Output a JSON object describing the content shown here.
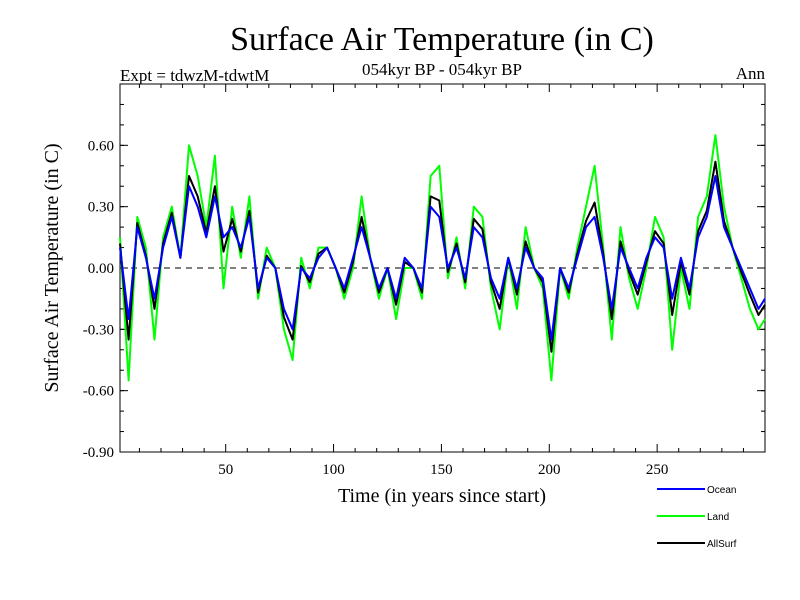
{
  "chart_data": {
    "type": "line",
    "title": "Surface Air Temperature (in C)",
    "experiment_label": "Expt = tdwzM-tdwtM",
    "subtitle": "054kyr BP - 054kyr BP",
    "period_label": "Ann",
    "xlabel": "Time (in years since start)",
    "ylabel": "Surface Air Temperature (in C)",
    "xlim": [
      1,
      300
    ],
    "ylim": [
      -0.9,
      0.9
    ],
    "x_ticks": [
      50,
      100,
      150,
      200,
      250
    ],
    "x_tick_labels": [
      "50",
      "100",
      "150",
      "200",
      "250"
    ],
    "y_ticks": [
      -0.9,
      -0.6,
      -0.3,
      0.0,
      0.3,
      0.6
    ],
    "y_tick_labels": [
      "-0.90",
      "-0.60",
      "-0.30",
      "0.00",
      "0.30",
      "0.60"
    ],
    "zero_line": true,
    "legend_position": "bottom-right",
    "x": [
      1,
      5,
      9,
      13,
      17,
      21,
      25,
      29,
      33,
      37,
      41,
      45,
      49,
      53,
      57,
      61,
      65,
      69,
      73,
      77,
      81,
      85,
      89,
      93,
      97,
      101,
      105,
      109,
      113,
      117,
      121,
      125,
      129,
      133,
      137,
      141,
      145,
      149,
      153,
      157,
      161,
      165,
      169,
      173,
      177,
      181,
      185,
      189,
      193,
      197,
      201,
      205,
      209,
      213,
      217,
      221,
      225,
      229,
      233,
      237,
      241,
      245,
      249,
      253,
      257,
      261,
      265,
      269,
      273,
      277,
      281,
      285,
      289,
      293,
      297,
      300
    ],
    "series": [
      {
        "name": "Ocean",
        "color": "#0000ff",
        "values": [
          0.1,
          -0.25,
          0.2,
          0.05,
          -0.15,
          0.1,
          0.25,
          0.05,
          0.4,
          0.3,
          0.15,
          0.35,
          0.15,
          0.2,
          0.1,
          0.25,
          -0.1,
          0.05,
          0.0,
          -0.2,
          -0.3,
          0.0,
          -0.05,
          0.05,
          0.1,
          0.0,
          -0.1,
          0.05,
          0.2,
          0.05,
          -0.1,
          0.0,
          -0.15,
          0.05,
          0.0,
          -0.1,
          0.3,
          0.25,
          0.0,
          0.1,
          -0.05,
          0.2,
          0.15,
          -0.05,
          -0.15,
          0.05,
          -0.1,
          0.1,
          0.0,
          -0.05,
          -0.35,
          0.0,
          -0.1,
          0.05,
          0.2,
          0.25,
          0.05,
          -0.2,
          0.1,
          0.0,
          -0.1,
          0.05,
          0.15,
          0.1,
          -0.15,
          0.05,
          -0.1,
          0.15,
          0.25,
          0.45,
          0.2,
          0.1,
          0.0,
          -0.1,
          -0.2,
          -0.15
        ]
      },
      {
        "name": "Land",
        "color": "#00ff00",
        "values": [
          0.15,
          -0.55,
          0.25,
          0.1,
          -0.35,
          0.15,
          0.3,
          0.05,
          0.6,
          0.45,
          0.2,
          0.55,
          -0.1,
          0.3,
          0.05,
          0.35,
          -0.15,
          0.1,
          0.0,
          -0.3,
          -0.45,
          0.05,
          -0.1,
          0.1,
          0.1,
          0.0,
          -0.15,
          0.0,
          0.35,
          0.05,
          -0.15,
          0.0,
          -0.25,
          0.0,
          0.0,
          -0.15,
          0.45,
          0.5,
          -0.05,
          0.15,
          -0.1,
          0.3,
          0.25,
          -0.1,
          -0.3,
          0.05,
          -0.2,
          0.2,
          0.0,
          -0.1,
          -0.55,
          0.0,
          -0.15,
          0.1,
          0.3,
          0.5,
          0.1,
          -0.35,
          0.2,
          -0.05,
          -0.2,
          0.0,
          0.25,
          0.15,
          -0.4,
          0.0,
          -0.2,
          0.25,
          0.35,
          0.65,
          0.3,
          0.1,
          -0.05,
          -0.2,
          -0.3,
          -0.25
        ]
      },
      {
        "name": "AllSurf",
        "color": "#000000",
        "values": [
          0.12,
          -0.35,
          0.22,
          0.06,
          -0.2,
          0.12,
          0.27,
          0.05,
          0.45,
          0.35,
          0.17,
          0.4,
          0.08,
          0.24,
          0.08,
          0.28,
          -0.12,
          0.06,
          0.0,
          -0.24,
          -0.35,
          0.01,
          -0.07,
          0.07,
          0.1,
          0.0,
          -0.12,
          0.03,
          0.25,
          0.05,
          -0.12,
          0.0,
          -0.18,
          0.03,
          0.0,
          -0.12,
          0.35,
          0.33,
          -0.02,
          0.12,
          -0.07,
          0.24,
          0.19,
          -0.07,
          -0.2,
          0.05,
          -0.13,
          0.13,
          0.0,
          -0.07,
          -0.41,
          0.0,
          -0.12,
          0.07,
          0.23,
          0.32,
          0.07,
          -0.25,
          0.13,
          -0.02,
          -0.13,
          0.03,
          0.18,
          0.12,
          -0.23,
          0.03,
          -0.13,
          0.18,
          0.28,
          0.52,
          0.23,
          0.1,
          -0.02,
          -0.13,
          -0.23,
          -0.18
        ]
      }
    ]
  }
}
